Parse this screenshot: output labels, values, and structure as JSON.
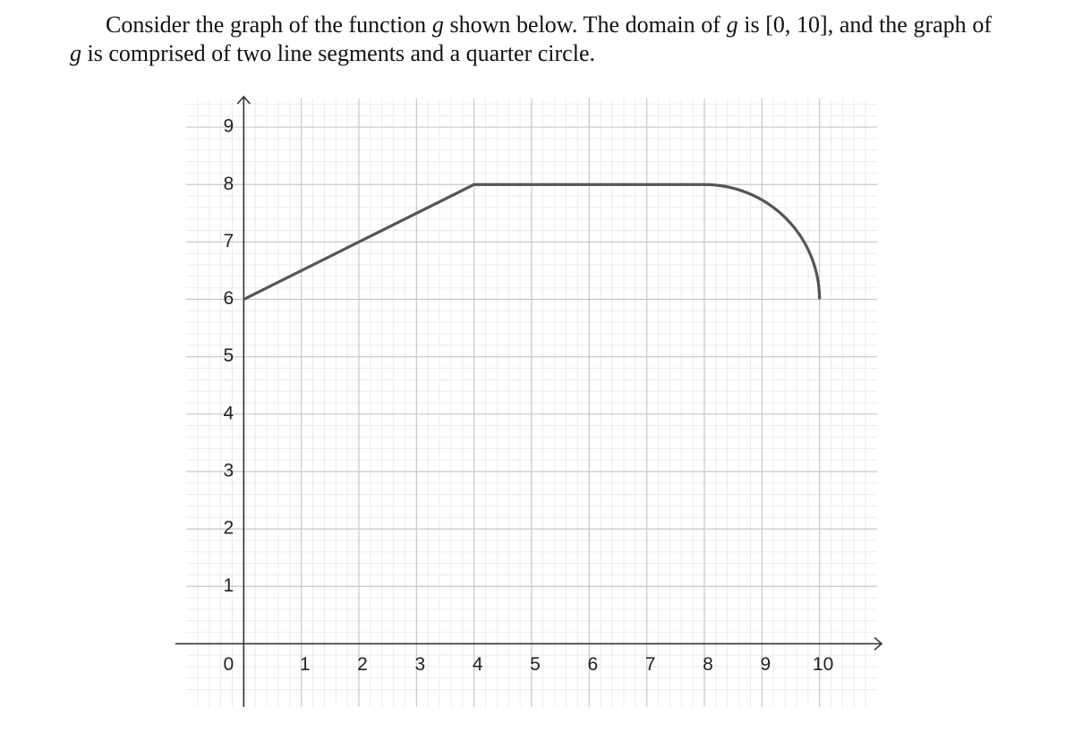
{
  "prompt": {
    "parts": [
      "Consider the graph of the function ",
      "g",
      " shown below. The domain of ",
      "g",
      " is ",
      "[0, 10]",
      ", and the graph of ",
      "g",
      " is comprised of two line segments and a quarter circle."
    ]
  },
  "chart_data": {
    "type": "line",
    "x": [
      0,
      4,
      8,
      10
    ],
    "values": [
      6,
      8,
      8,
      6
    ],
    "pieces": [
      "line",
      "line",
      "arc"
    ],
    "color": "#555555",
    "xlim": [
      -1,
      11
    ],
    "ylim": [
      -1.1,
      9.5
    ],
    "xticks": [
      0,
      1,
      2,
      3,
      4,
      5,
      6,
      7,
      8,
      9,
      10
    ],
    "yticks": [
      0,
      1,
      2,
      3,
      4,
      5,
      6,
      7,
      8,
      9
    ],
    "grid": true,
    "minor_grid": 5
  }
}
